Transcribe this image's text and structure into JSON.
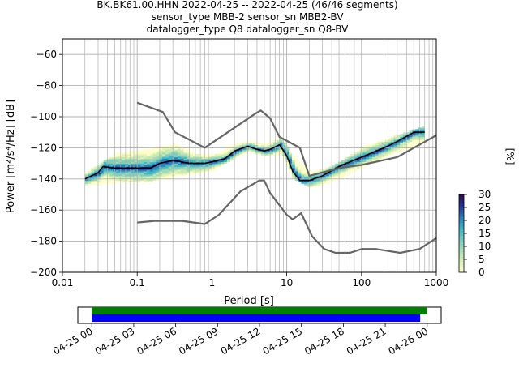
{
  "header": {
    "line1": "BK.BK61.00.HHN   2022-04-25 -- 2022-04-25  (46/46 segments)",
    "line2": "sensor_type MBB-2 sensor_sn MBB2-BV",
    "line3": "datalogger_type Q8 datalogger_sn Q8-BV"
  },
  "chart_data": [
    {
      "type": "heatmap",
      "xlabel": "Period [s]",
      "ylabel": "Power [m²/s⁴/Hz] [dB]",
      "x_scale": "log",
      "xlim": [
        0.01,
        1000
      ],
      "ylim": [
        -200,
        -50
      ],
      "x_ticks": [
        0.01,
        0.1,
        1,
        10,
        100,
        1000
      ],
      "x_tick_labels": [
        "0.01",
        "0.1",
        "1",
        "10",
        "100",
        "1000"
      ],
      "y_ticks": [
        -200,
        -180,
        -160,
        -140,
        -120,
        -100,
        -80,
        -60
      ],
      "y_tick_labels": [
        "−200",
        "−180",
        "−160",
        "−140",
        "−120",
        "−100",
        "−80",
        "−60"
      ],
      "grid": true,
      "colorbar": {
        "label": "[%]",
        "range": [
          0,
          30
        ],
        "ticks": [
          0,
          5,
          10,
          15,
          20,
          25,
          30
        ],
        "tick_labels": [
          "0",
          "5",
          "10",
          "15",
          "20",
          "25",
          "30"
        ]
      },
      "series": [
        {
          "role": "mode",
          "color": "#000000",
          "points": [
            [
              0.02,
              -140
            ],
            [
              0.03,
              -136
            ],
            [
              0.035,
              -132
            ],
            [
              0.05,
              -133
            ],
            [
              0.1,
              -133
            ],
            [
              0.15,
              -133
            ],
            [
              0.2,
              -130
            ],
            [
              0.3,
              -128
            ],
            [
              0.5,
              -130
            ],
            [
              0.8,
              -130
            ],
            [
              1,
              -129
            ],
            [
              1.5,
              -127
            ],
            [
              2,
              -122
            ],
            [
              3,
              -119
            ],
            [
              4,
              -121
            ],
            [
              5,
              -122
            ],
            [
              6,
              -121
            ],
            [
              8,
              -118
            ],
            [
              10,
              -125
            ],
            [
              12,
              -135
            ],
            [
              15,
              -141
            ],
            [
              20,
              -141
            ],
            [
              30,
              -138
            ],
            [
              50,
              -132
            ],
            [
              100,
              -126
            ],
            [
              200,
              -120
            ],
            [
              300,
              -116
            ],
            [
              500,
              -110
            ],
            [
              700,
              -110
            ]
          ]
        },
        {
          "role": "noise-model-high",
          "color": "#666666",
          "points": [
            [
              0.1,
              -91
            ],
            [
              0.22,
              -97
            ],
            [
              0.32,
              -110
            ],
            [
              0.8,
              -120
            ],
            [
              3.8,
              -98
            ],
            [
              4.5,
              -96
            ],
            [
              6,
              -101
            ],
            [
              8,
              -113
            ],
            [
              15,
              -120
            ],
            [
              20,
              -138
            ],
            [
              50,
              -133
            ],
            [
              100,
              -131
            ],
            [
              300,
              -126
            ],
            [
              1000,
              -112
            ]
          ]
        },
        {
          "role": "noise-model-low",
          "color": "#666666",
          "points": [
            [
              0.1,
              -168
            ],
            [
              0.17,
              -167
            ],
            [
              0.4,
              -167
            ],
            [
              0.8,
              -169
            ],
            [
              1.24,
              -163
            ],
            [
              2.4,
              -148
            ],
            [
              4.3,
              -141
            ],
            [
              5,
              -141
            ],
            [
              6,
              -149
            ],
            [
              10,
              -163
            ],
            [
              12,
              -166
            ],
            [
              15.6,
              -162
            ],
            [
              21.9,
              -177
            ],
            [
              31.6,
              -185
            ],
            [
              45,
              -187.5
            ],
            [
              70,
              -187.5
            ],
            [
              101,
              -185
            ],
            [
              154,
              -185
            ],
            [
              328,
              -187.5
            ],
            [
              600,
              -185
            ],
            [
              1000,
              -178
            ]
          ]
        },
        {
          "role": "probability-density",
          "color_range": [
            "#ffffcc",
            "#2c0a4a"
          ],
          "percent_range": [
            0,
            30
          ],
          "band": [
            [
              0.02,
              -144,
              -136
            ],
            [
              0.05,
              -142,
              -124
            ],
            [
              0.15,
              -141,
              -121
            ],
            [
              0.3,
              -138,
              -118
            ],
            [
              0.6,
              -136,
              -124
            ],
            [
              1,
              -134,
              -125
            ],
            [
              2,
              -126,
              -118
            ],
            [
              3,
              -122,
              -116
            ],
            [
              5,
              -125,
              -118
            ],
            [
              8,
              -124,
              -114
            ],
            [
              12,
              -140,
              -126
            ],
            [
              20,
              -145,
              -136
            ],
            [
              40,
              -141,
              -132
            ],
            [
              100,
              -132,
              -120
            ],
            [
              300,
              -122,
              -112
            ],
            [
              700,
              -116,
              -106
            ]
          ]
        }
      ]
    },
    {
      "type": "timeline",
      "ticks": [
        "04-25 00",
        "04-25 03",
        "04-25 06",
        "04-25 09",
        "04-25 12",
        "04-25 15",
        "04-25 18",
        "04-25 21",
        "04-26 00"
      ],
      "range_hours": [
        -1,
        25
      ],
      "bars": [
        {
          "name": "data-coverage",
          "color": "#008000",
          "start_hour": 0,
          "end_hour": 24.0
        },
        {
          "name": "psd-coverage",
          "color": "#0000ff",
          "start_hour": 0,
          "end_hour": 23.5
        }
      ]
    }
  ]
}
